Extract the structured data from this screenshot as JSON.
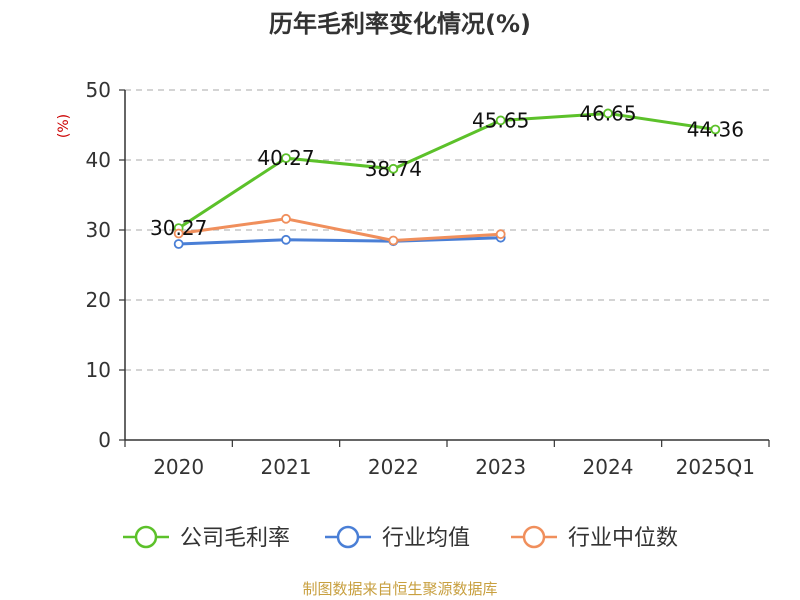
{
  "chart_data": {
    "type": "line",
    "title": "历年毛利率变化情况(%)",
    "ylabel": "(%)",
    "ylim": [
      0,
      50
    ],
    "yticks": [
      0,
      10,
      20,
      30,
      40,
      50
    ],
    "categories": [
      "2020",
      "2021",
      "2022",
      "2023",
      "2024",
      "2025Q1"
    ],
    "grid": true,
    "legend_position": "bottom",
    "series": [
      {
        "name": "公司毛利率",
        "color": "#5cc12a",
        "values": [
          30.27,
          40.27,
          38.74,
          45.65,
          46.65,
          44.36
        ],
        "labels": true
      },
      {
        "name": "行业均值",
        "color": "#4a7fd6",
        "values": [
          28.0,
          28.6,
          28.4,
          28.9,
          null,
          null
        ],
        "labels": false
      },
      {
        "name": "行业中位数",
        "color": "#f08f5c",
        "values": [
          29.5,
          31.6,
          28.5,
          29.4,
          null,
          null
        ],
        "labels": false
      }
    ]
  },
  "source": "制图数据来自恒生聚源数据库"
}
